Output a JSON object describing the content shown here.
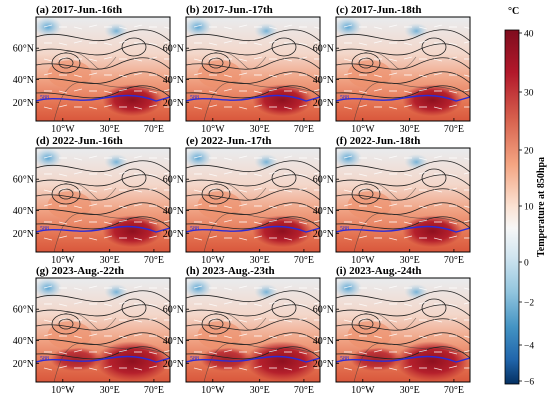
{
  "figure": {
    "panels": [
      {
        "title": "(a) 2017-Jun.-16th"
      },
      {
        "title": "(b) 2017-Jun.-17th"
      },
      {
        "title": "(c) 2017-Jun.-18th"
      },
      {
        "title": "(d) 2022-Jun.-16th"
      },
      {
        "title": "(e) 2022-Jun.-17th"
      },
      {
        "title": "(f) 2022-Jun.-18th"
      },
      {
        "title": "(g) 2023-Aug.-22th"
      },
      {
        "title": "(h) 2023-Aug.-23th"
      },
      {
        "title": "(i) 2023-Aug.-24th"
      }
    ],
    "lat_ticks": [
      "20°N",
      "40°N",
      "60°N"
    ],
    "lon_ticks": [
      "10°W",
      "30°E",
      "70°E"
    ],
    "contour_label": "588",
    "colorbar": {
      "unit": "°C",
      "title": "Temperature at 850hpa",
      "ticks": [
        "40",
        "30",
        "20",
        "10",
        "0",
        "−2",
        "−4",
        "−6"
      ],
      "colors": [
        "#7f0d1e",
        "#b2182b",
        "#d6604d",
        "#f4a582",
        "#fbe3d4",
        "#f7f7f7",
        "#d1e5f0",
        "#92c5de",
        "#4393c3",
        "#2166ac",
        "#053061"
      ]
    }
  }
}
